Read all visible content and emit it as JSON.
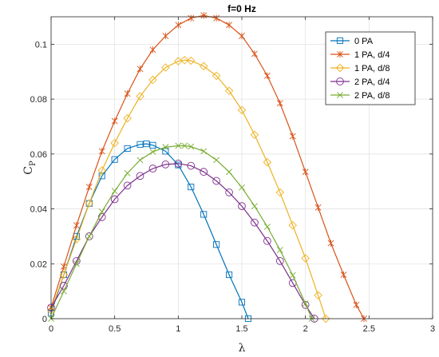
{
  "chart_data": {
    "type": "line",
    "title": "f=0 Hz",
    "xlabel": "λ",
    "ylabel_main": "C",
    "ylabel_sub": "P",
    "xlim": [
      0,
      3
    ],
    "ylim": [
      0,
      0.11
    ],
    "xticks": [
      0,
      0.5,
      1,
      1.5,
      2,
      2.5,
      3
    ],
    "xtick_labels": [
      "0",
      "0.5",
      "1",
      "1.5",
      "2",
      "2.5",
      "3"
    ],
    "yticks": [
      0,
      0.02,
      0.04,
      0.06,
      0.08,
      0.1
    ],
    "ytick_labels": [
      "0",
      "0.02",
      "0.04",
      "0.06",
      "0.08",
      "0.1"
    ],
    "grid": true,
    "legend_position": "top-right",
    "series": [
      {
        "name": "0 PA",
        "color": "#0072BD",
        "marker": "square",
        "x": [
          0,
          0.1,
          0.2,
          0.3,
          0.4,
          0.5,
          0.6,
          0.7,
          0.75,
          0.8,
          0.9,
          1.0,
          1.1,
          1.2,
          1.3,
          1.4,
          1.5,
          1.55
        ],
        "y": [
          0.002,
          0.016,
          0.03,
          0.042,
          0.052,
          0.058,
          0.062,
          0.0635,
          0.0637,
          0.0632,
          0.061,
          0.056,
          0.048,
          0.038,
          0.027,
          0.016,
          0.006,
          0.0
        ]
      },
      {
        "name": "1 PA, d/4",
        "color": "#D95319",
        "marker": "asterisk",
        "x": [
          0,
          0.1,
          0.2,
          0.3,
          0.4,
          0.5,
          0.6,
          0.7,
          0.8,
          0.9,
          1.0,
          1.1,
          1.2,
          1.3,
          1.4,
          1.5,
          1.6,
          1.7,
          1.8,
          1.9,
          2.0,
          2.1,
          2.2,
          2.3,
          2.4,
          2.46
        ],
        "y": [
          0.004,
          0.019,
          0.034,
          0.048,
          0.061,
          0.072,
          0.082,
          0.091,
          0.098,
          0.103,
          0.107,
          0.1095,
          0.1105,
          0.1095,
          0.107,
          0.103,
          0.0965,
          0.0885,
          0.0785,
          0.0665,
          0.0535,
          0.0405,
          0.0275,
          0.016,
          0.005,
          0.0
        ]
      },
      {
        "name": "1 PA, d/8",
        "color": "#EDB120",
        "marker": "diamond",
        "x": [
          0,
          0.1,
          0.2,
          0.3,
          0.4,
          0.5,
          0.6,
          0.7,
          0.8,
          0.9,
          1.0,
          1.05,
          1.1,
          1.2,
          1.3,
          1.4,
          1.5,
          1.6,
          1.7,
          1.8,
          1.9,
          2.0,
          2.1,
          2.16
        ],
        "y": [
          0.003,
          0.016,
          0.029,
          0.042,
          0.054,
          0.064,
          0.073,
          0.081,
          0.087,
          0.0915,
          0.0938,
          0.0942,
          0.094,
          0.092,
          0.0885,
          0.083,
          0.076,
          0.067,
          0.057,
          0.046,
          0.034,
          0.022,
          0.0085,
          0.0
        ]
      },
      {
        "name": "2 PA, d/4",
        "color": "#7E2F8E",
        "marker": "circle",
        "x": [
          0,
          0.1,
          0.2,
          0.3,
          0.4,
          0.5,
          0.6,
          0.7,
          0.8,
          0.9,
          1.0,
          1.1,
          1.2,
          1.3,
          1.4,
          1.5,
          1.6,
          1.7,
          1.8,
          1.9,
          2.0,
          2.07
        ],
        "y": [
          0.004,
          0.012,
          0.021,
          0.03,
          0.037,
          0.0435,
          0.0485,
          0.052,
          0.0547,
          0.0562,
          0.0565,
          0.0557,
          0.0535,
          0.0502,
          0.046,
          0.041,
          0.035,
          0.0283,
          0.021,
          0.013,
          0.005,
          0.0
        ]
      },
      {
        "name": "2 PA, d/8",
        "color": "#77AC30",
        "marker": "x",
        "x": [
          0,
          0.1,
          0.2,
          0.3,
          0.4,
          0.5,
          0.6,
          0.7,
          0.8,
          0.9,
          1.0,
          1.05,
          1.1,
          1.2,
          1.3,
          1.4,
          1.5,
          1.6,
          1.7,
          1.8,
          1.9,
          2.0,
          2.05
        ],
        "y": [
          0.0,
          0.01,
          0.02,
          0.03,
          0.039,
          0.0465,
          0.053,
          0.0578,
          0.0608,
          0.0625,
          0.063,
          0.063,
          0.0627,
          0.061,
          0.0578,
          0.0535,
          0.0478,
          0.041,
          0.0335,
          0.025,
          0.0158,
          0.0055,
          0.0
        ]
      }
    ]
  }
}
